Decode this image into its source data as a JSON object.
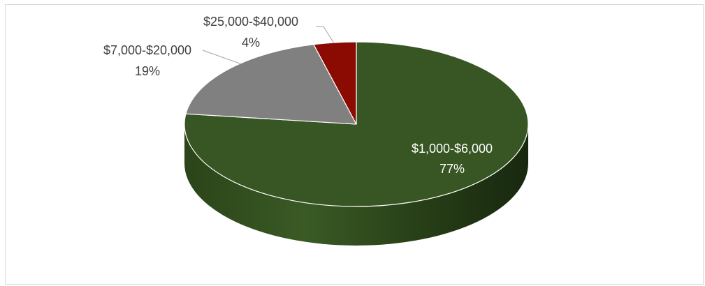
{
  "chart_data": {
    "type": "pie",
    "style": "3d",
    "title": "",
    "categories": [
      "$1,000-$6,000",
      "$7,000-$20,000",
      "$25,000-$40,000"
    ],
    "values": [
      77,
      19,
      4
    ],
    "value_labels": [
      "77%",
      "19%",
      "4%"
    ],
    "unit": "%",
    "colors": [
      "#375623",
      "#808080",
      "#8b0a02"
    ],
    "legend": "none",
    "grid": false
  }
}
